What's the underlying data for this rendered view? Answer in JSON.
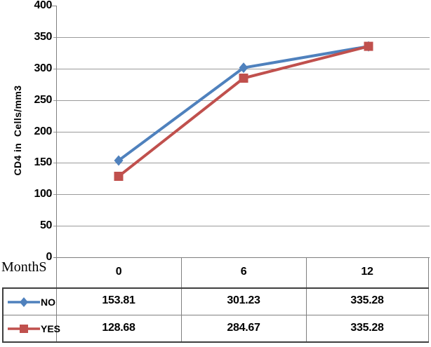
{
  "chart_data": {
    "type": "line",
    "title": "",
    "ylabel": "CD4 in  Cells/mm3",
    "xlabel": "MonthS",
    "ylim": [
      0,
      400
    ],
    "ytick_step": 50,
    "ytick_labels": [
      "400",
      "350",
      "300",
      "250",
      "200",
      "150",
      "100",
      "50",
      "0"
    ],
    "categories": [
      "0",
      "6",
      "12"
    ],
    "series": [
      {
        "name": "NO",
        "marker": "diamond",
        "color": "#4F81BD",
        "values": [
          153.81,
          301.23,
          335.28
        ]
      },
      {
        "name": "YES",
        "marker": "square",
        "color": "#C0504D",
        "values": [
          128.68,
          284.67,
          335.28
        ]
      }
    ],
    "grid": true,
    "legend_position": "data-table-left"
  },
  "data_table": {
    "corner_label": "MonthS",
    "columns": [
      "0",
      "6",
      "12"
    ],
    "rows": [
      {
        "label": "NO",
        "values": [
          "153.81",
          "301.23",
          "335.28"
        ]
      },
      {
        "label": "YES",
        "values": [
          "128.68",
          "284.67",
          "335.28"
        ]
      }
    ]
  }
}
